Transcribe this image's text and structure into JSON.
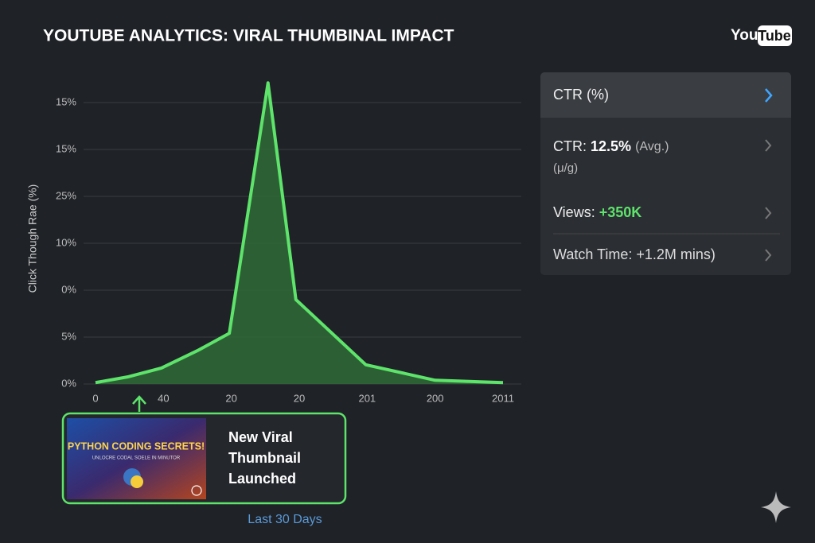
{
  "header": {
    "title": "YOUTUBE ANALYTICS: VIRAL THUMBINAL IMPACT",
    "logo_you": "You",
    "logo_tube": "Tube"
  },
  "chart_data": {
    "type": "line",
    "y_label": "Click Though Rae (%)",
    "x_label": "Last 30 Days",
    "x": [
      0,
      0.47,
      0.97,
      1.5,
      1.97,
      2.54,
      2.95,
      3.98,
      5.0,
      6.0
    ],
    "series": [
      {
        "name": "CTR",
        "color": "#5ee36b",
        "values": [
          0.03,
          0.15,
          0.34,
          0.71,
          1.08,
          6.42,
          1.8,
          0.41,
          0.08,
          0.03
        ]
      }
    ],
    "xlim": [
      0,
      6
    ],
    "ylim": [
      0,
      6.6
    ],
    "xticks": [
      {
        "value": 0,
        "label": "0"
      },
      {
        "value": 1,
        "label": "40"
      },
      {
        "value": 2,
        "label": "20"
      },
      {
        "value": 3,
        "label": "20"
      },
      {
        "value": 4,
        "label": "201"
      },
      {
        "value": 5,
        "label": "200"
      },
      {
        "value": 6,
        "label": "2011"
      }
    ],
    "yticks": [
      {
        "value": 0,
        "label": "0%"
      },
      {
        "value": 1,
        "label": "5%"
      },
      {
        "value": 2,
        "label": "0%"
      },
      {
        "value": 3,
        "label": "10%"
      },
      {
        "value": 4,
        "label": "25%"
      },
      {
        "value": 5,
        "label": "15%"
      },
      {
        "value": 6,
        "label": "15%"
      }
    ],
    "grid": true,
    "annotation": {
      "lines": [
        "New Viral",
        "Thumbnail",
        "Launched"
      ],
      "thumb_title": "PYTHON CODING SECRETS!",
      "thumb_sub": "UNLOCRE CODAL SOELE IN MINUTOR"
    }
  },
  "panel": {
    "rows": [
      {
        "label": "CTR (%)"
      },
      {
        "label": "CTR:",
        "value": "12.5%",
        "suffix": "(Avg.)",
        "sub": "(μ/g)"
      },
      {
        "label": "Views:",
        "value": "+350K"
      },
      {
        "label": "Watch Time: +1.2M mins)"
      }
    ]
  }
}
